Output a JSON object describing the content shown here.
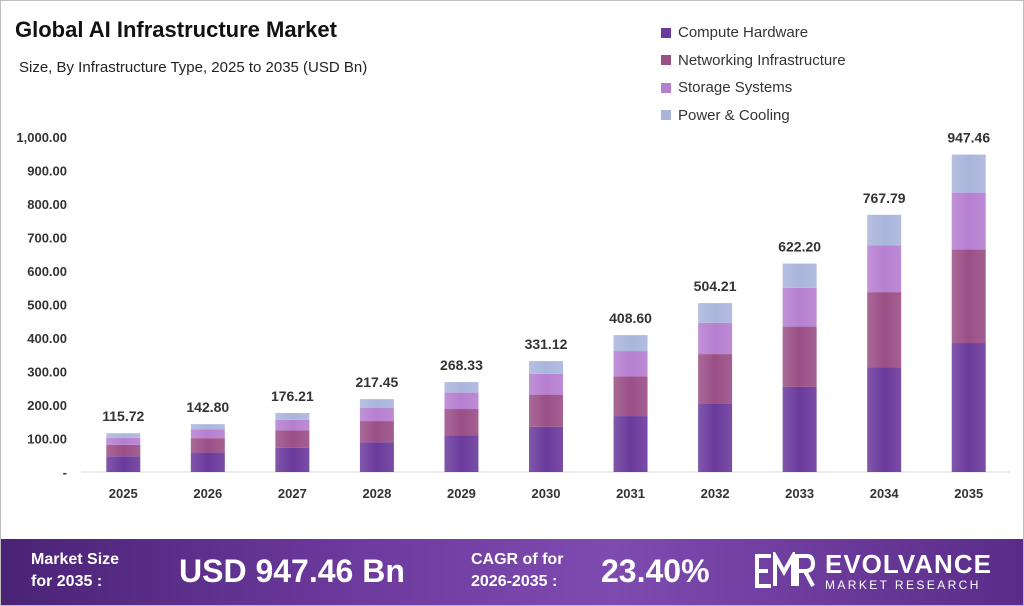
{
  "header": {
    "title": "Global AI Infrastructure Market",
    "subtitle": "Size, By Infrastructure Type, 2025 to 2035 (USD Bn)"
  },
  "legend": [
    {
      "label": "Compute Hardware",
      "color": "#6a3a9c"
    },
    {
      "label": "Networking Infrastructure",
      "color": "#9a4f86"
    },
    {
      "label": "Storage Systems",
      "color": "#b67fd0"
    },
    {
      "label": "Power & Cooling",
      "color": "#aab5dc"
    }
  ],
  "chart_data": {
    "type": "bar",
    "stacked": true,
    "categories": [
      "2025",
      "2026",
      "2027",
      "2028",
      "2029",
      "2030",
      "2031",
      "2032",
      "2033",
      "2034",
      "2035"
    ],
    "totals": [
      115.72,
      142.8,
      176.21,
      217.45,
      268.33,
      331.12,
      408.6,
      504.21,
      622.2,
      767.79,
      947.46
    ],
    "total_labels": [
      "115.72",
      "142.80",
      "176.21",
      "217.45",
      "268.33",
      "331.12",
      "408.60",
      "504.21",
      "622.20",
      "767.79",
      "947.46"
    ],
    "series": [
      {
        "name": "Compute Hardware",
        "color": "#6a3a9c",
        "values": [
          47,
          58,
          72,
          89,
          110,
          135,
          167,
          205,
          254,
          313,
          385
        ]
      },
      {
        "name": "Networking Infrastructure",
        "color": "#9a4f86",
        "values": [
          34,
          43,
          52,
          63,
          78,
          96,
          118,
          147,
          180,
          224,
          279
        ]
      },
      {
        "name": "Storage Systems",
        "color": "#b67fd0",
        "values": [
          21,
          26,
          32,
          40,
          49,
          62,
          76,
          93,
          116,
          139,
          170
        ]
      },
      {
        "name": "Power & Cooling",
        "color": "#aab5dc",
        "values": [
          13.72,
          15.8,
          20.21,
          25.45,
          31.33,
          38.12,
          47.6,
          59.21,
          72.2,
          91.79,
          113.46
        ]
      }
    ],
    "y_ticks": [
      0,
      100,
      200,
      300,
      400,
      500,
      600,
      700,
      800,
      900,
      1000
    ],
    "y_tick_labels": [
      "-",
      "100.00",
      "200.00",
      "300.00",
      "400.00",
      "500.00",
      "600.00",
      "700.00",
      "800.00",
      "900.00",
      "1,000.00"
    ],
    "ylim": [
      0,
      1000
    ],
    "grid": false,
    "legend_position": "top-right"
  },
  "footer": {
    "market_size_label": "Market Size",
    "market_size_label2": "for 2035 :",
    "market_size_value": "USD 947.46 Bn",
    "cagr_label": "CAGR of for",
    "cagr_label2": "2026-2035 :",
    "cagr_value": "23.40%",
    "logo_main": "EVOLVANCE",
    "logo_sub": "MARKET RESEARCH"
  }
}
